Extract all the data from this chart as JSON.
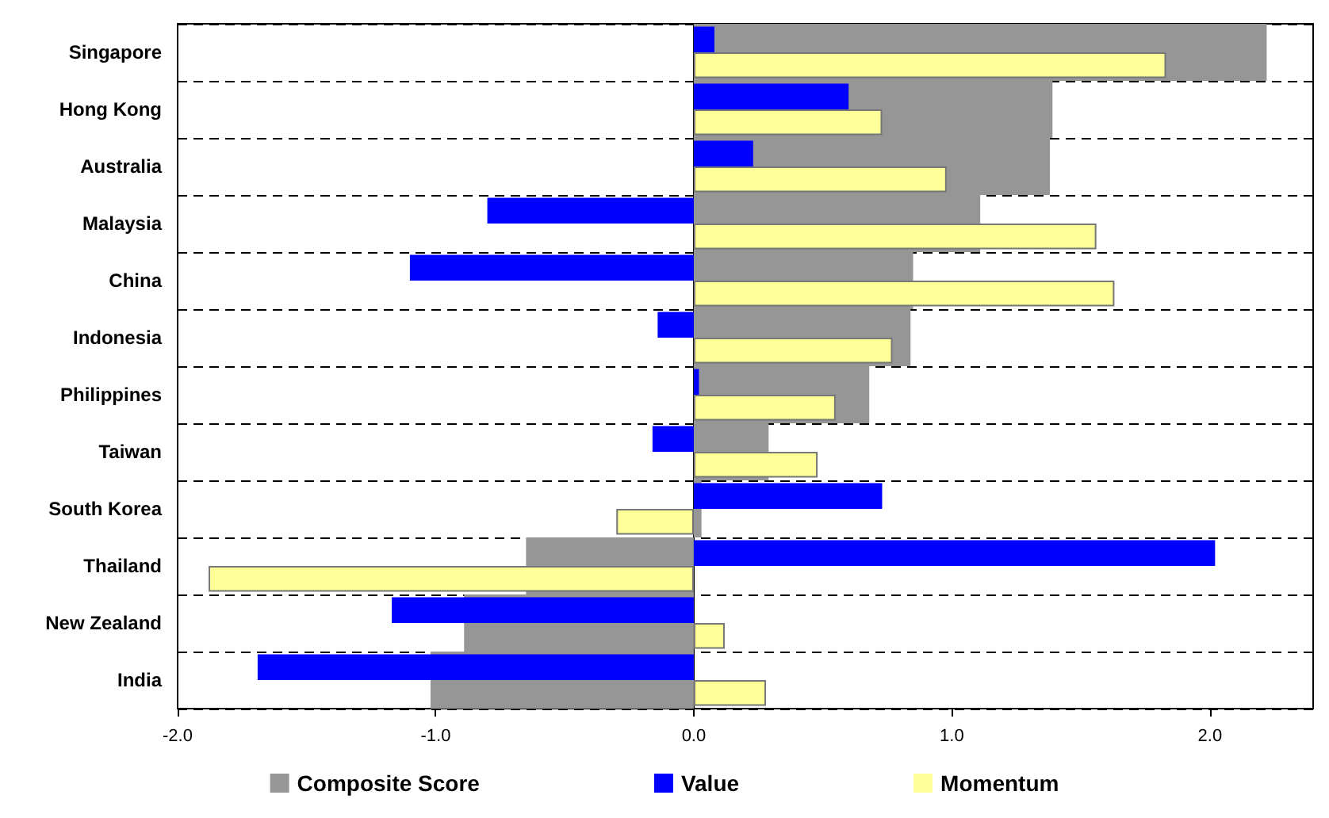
{
  "chart_data": {
    "type": "bar",
    "orientation": "horizontal",
    "categories": [
      "Singapore",
      "Hong Kong",
      "Australia",
      "Malaysia",
      "China",
      "Indonesia",
      "Philippines",
      "Taiwan",
      "South Korea",
      "Thailand",
      "New Zealand",
      "India"
    ],
    "series": [
      {
        "name": "Composite Score",
        "color": "#969696",
        "values": [
          2.22,
          1.39,
          1.38,
          1.11,
          0.85,
          0.84,
          0.68,
          0.29,
          0.03,
          -0.65,
          -0.89,
          -1.02
        ]
      },
      {
        "name": "Value",
        "color": "#0000ff",
        "values": [
          0.08,
          0.6,
          0.23,
          -0.8,
          -1.1,
          -0.14,
          0.02,
          -0.16,
          0.73,
          2.02,
          -1.17,
          -1.69
        ]
      },
      {
        "name": "Momentum",
        "color": "#ffff99",
        "values": [
          1.83,
          0.73,
          0.98,
          1.56,
          1.63,
          0.77,
          0.55,
          0.48,
          -0.3,
          -1.88,
          0.12,
          0.28
        ]
      }
    ],
    "xlim": [
      -2,
      2.4
    ],
    "xticks": [
      {
        "value": -2,
        "label": "-2.0"
      },
      {
        "value": -1,
        "label": "-1.0"
      },
      {
        "value": 0,
        "label": "0.0"
      },
      {
        "value": 1,
        "label": "1.0"
      },
      {
        "value": 2,
        "label": "2.0"
      }
    ],
    "grid": "y",
    "legend": "bottom"
  }
}
